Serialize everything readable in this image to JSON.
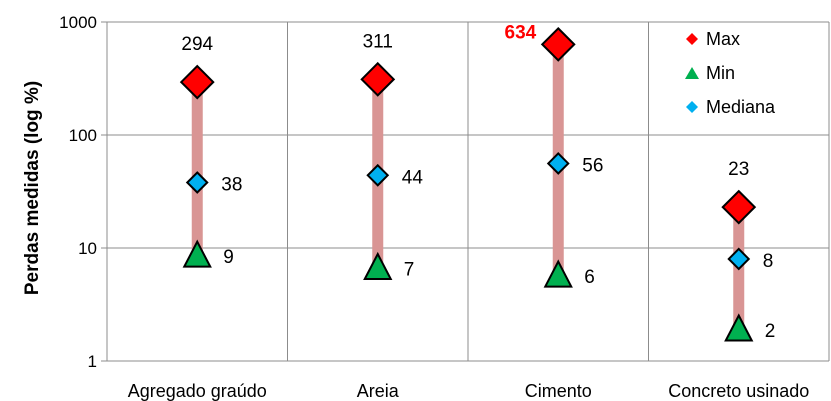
{
  "chart_data": {
    "type": "scatter",
    "ylabel": "Perdas medidas (log %)",
    "ylog": true,
    "ylim": [
      1,
      1000
    ],
    "yticks": [
      1,
      10,
      100,
      1000
    ],
    "ytick_labels": [
      "1",
      "10",
      "100",
      "1000"
    ],
    "grid": true,
    "legend_position": "top-right",
    "categories": [
      "Agregado graúdo",
      "Areia",
      "Cimento",
      "Concreto usinado"
    ],
    "range_bar_color": "#d99594",
    "series": [
      {
        "name": "Max",
        "marker": "diamond-large",
        "color": "#ff0000",
        "values": [
          294,
          311,
          634,
          23
        ]
      },
      {
        "name": "Min",
        "marker": "triangle",
        "color": "#00b050",
        "values": [
          9,
          7,
          6,
          2
        ]
      },
      {
        "name": "Mediana",
        "marker": "diamond-small",
        "color": "#00b0f0",
        "values": [
          38,
          44,
          56,
          8
        ]
      }
    ],
    "data_labels": {
      "Max": [
        "294",
        "311",
        "634",
        "23"
      ],
      "Min": [
        "9",
        "7",
        "6",
        "2"
      ],
      "Mediana": [
        "38",
        "44",
        "56",
        "8"
      ]
    },
    "highlight": {
      "series": "Max",
      "index": 2,
      "color": "#ff0000",
      "bold": true
    }
  }
}
